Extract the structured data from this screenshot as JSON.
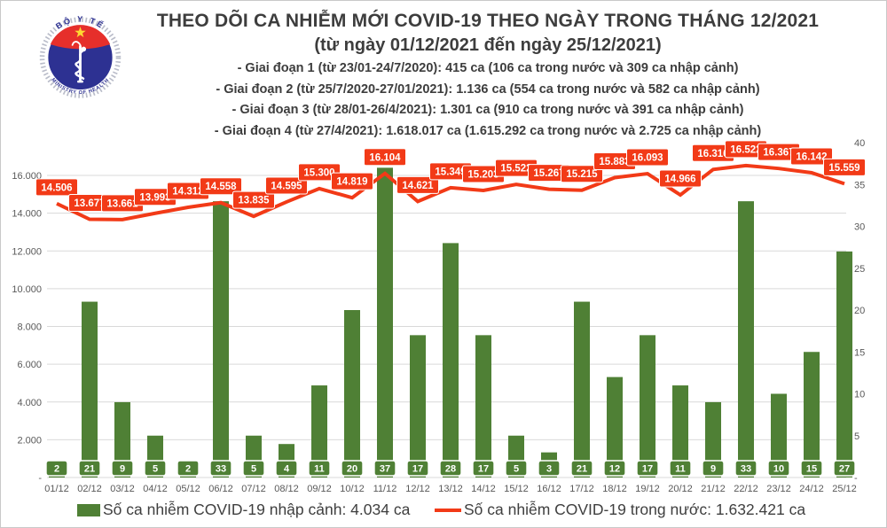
{
  "header": {
    "title": "THEO DÕI CA NHIỄM MỚI COVID-19 THEO NGÀY TRONG THÁNG 12/2021",
    "subtitle": "(từ ngày 01/12/2021 đến ngày 25/12/2021)",
    "notes": [
      "- Giai đoạn 1 (từ 23/01-24/7/2020): 415 ca (106 ca trong nước và 309 ca nhập cảnh)",
      "- Giai đoạn 2 (từ 25/7/2020-27/01/2021): 1.136 ca (554 ca trong nước và 582 ca nhập cảnh)",
      "- Giai đoạn 3 (từ 28/01-26/4/2021): 1.301 ca (910 ca trong nước và 391 ca nhập cảnh)",
      "- Giai đoạn 4 (từ 27/4/2021): 1.618.017 ca (1.615.292 ca trong nước và 2.725 ca nhập cảnh)"
    ],
    "logo": {
      "top_text": "BỘ Y TẾ",
      "bottom_text": "MINISTRY OF HEALTH"
    }
  },
  "chart_data": {
    "type": "combo (bar + line)",
    "categories": [
      "01/12",
      "02/12",
      "03/12",
      "04/12",
      "05/12",
      "06/12",
      "07/12",
      "08/12",
      "09/12",
      "10/12",
      "11/12",
      "12/12",
      "13/12",
      "14/12",
      "15/12",
      "16/12",
      "17/12",
      "18/12",
      "19/12",
      "20/12",
      "21/12",
      "22/12",
      "23/12",
      "24/12",
      "25/12"
    ],
    "series": [
      {
        "name": "Số ca nhiễm COVID-19 nhập cảnh",
        "type": "bar",
        "axis": "right",
        "color": "#4f8035",
        "values": [
          2,
          21,
          9,
          5,
          2,
          33,
          5,
          4,
          11,
          20,
          37,
          17,
          28,
          17,
          5,
          3,
          21,
          12,
          17,
          11,
          9,
          33,
          10,
          15,
          27
        ]
      },
      {
        "name": "Số ca nhiễm COVID-19 trong nước",
        "type": "line",
        "axis": "left",
        "color": "#f23a17",
        "values": [
          14506,
          13677,
          13661,
          13993,
          14312,
          14558,
          13835,
          14595,
          15300,
          14819,
          16104,
          14621,
          15349,
          15203,
          15522,
          15267,
          15215,
          15883,
          16093,
          14966,
          16316,
          16522,
          16367,
          16142,
          15559
        ],
        "point_labels": [
          "14.506",
          "13.677",
          "13.661",
          "13.993",
          "14.312",
          "14.558",
          "13.835",
          "14.595",
          "15.300",
          "14.819",
          "16.104",
          "14.621",
          "15.349",
          "15.203",
          "15.522",
          "15.267",
          "15.215",
          "15.883",
          "16.093",
          "14.966",
          "16.316",
          "16.522",
          "16.367",
          "16.142",
          "15.559"
        ]
      }
    ],
    "left_axis": {
      "min": 0,
      "max": 16000,
      "step": 2000,
      "tick_labels": [
        "-",
        "2.000",
        "4.000",
        "6.000",
        "8.000",
        "10.000",
        "12.000",
        "14.000",
        "16.000"
      ]
    },
    "right_axis": {
      "min": 0,
      "max": 40,
      "step": 5,
      "tick_labels": [
        "-",
        "5",
        "10",
        "15",
        "20",
        "25",
        "30",
        "35",
        "40"
      ]
    },
    "grid": "horizontal",
    "legend_position": "bottom"
  },
  "legend": {
    "bar_label": "Số ca nhiễm COVID-19 nhập cảnh: 4.034 ca",
    "line_label": "Số ca nhiễm COVID-19 trong nước: 1.632.421 ca"
  }
}
